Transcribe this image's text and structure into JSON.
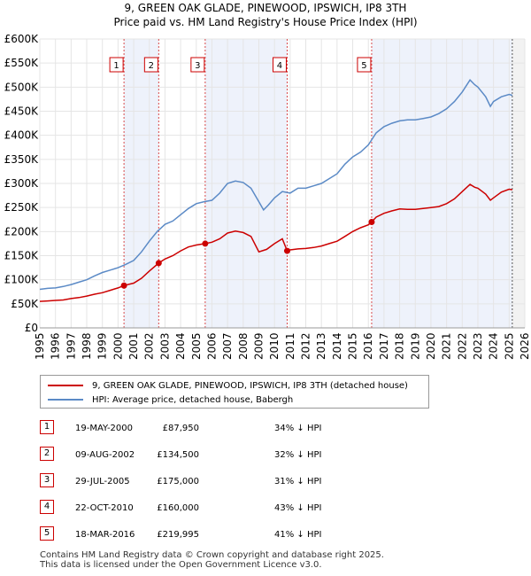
{
  "title": {
    "line1": "9, GREEN OAK GLADE, PINEWOOD, IPSWICH, IP8 3TH",
    "line2": "Price paid vs. HM Land Registry's House Price Index (HPI)"
  },
  "colors": {
    "property": "#cc0000",
    "hpi": "#5b8ac6",
    "shade": "#eef2fb",
    "grid": "#e5e5e5"
  },
  "chart_data": {
    "type": "line",
    "title": "Price paid vs. HM Land Registry's House Price Index (HPI)",
    "xlabel": "",
    "ylabel": "",
    "xlim": [
      1995,
      2026
    ],
    "ylim": [
      0,
      600000
    ],
    "y_ticks": [
      {
        "value": 0,
        "label": "£0"
      },
      {
        "value": 50000,
        "label": "£50K"
      },
      {
        "value": 100000,
        "label": "£100K"
      },
      {
        "value": 150000,
        "label": "£150K"
      },
      {
        "value": 200000,
        "label": "£200K"
      },
      {
        "value": 250000,
        "label": "£250K"
      },
      {
        "value": 300000,
        "label": "£300K"
      },
      {
        "value": 350000,
        "label": "£350K"
      },
      {
        "value": 400000,
        "label": "£400K"
      },
      {
        "value": 450000,
        "label": "£450K"
      },
      {
        "value": 500000,
        "label": "£500K"
      },
      {
        "value": 550000,
        "label": "£550K"
      },
      {
        "value": 600000,
        "label": "£600K"
      }
    ],
    "x_ticks": [
      "1995",
      "1996",
      "1997",
      "1998",
      "1999",
      "2000",
      "2001",
      "2002",
      "2003",
      "2004",
      "2005",
      "2006",
      "2007",
      "2008",
      "2009",
      "2010",
      "2011",
      "2012",
      "2013",
      "2014",
      "2015",
      "2016",
      "2017",
      "2018",
      "2019",
      "2020",
      "2021",
      "2022",
      "2023",
      "2024",
      "2025",
      "2026"
    ],
    "shaded_periods": [
      [
        2000.38,
        2002.6
      ],
      [
        2005.57,
        2010.81
      ],
      [
        2016.21,
        2025.2
      ]
    ],
    "series": [
      {
        "name": "HPI: Average price, detached house, Babergh",
        "color": "#5b8ac6",
        "x": [
          1995.0,
          1995.5,
          1996.0,
          1996.5,
          1997.0,
          1997.5,
          1998.0,
          1998.5,
          1999.0,
          1999.5,
          2000.0,
          2000.5,
          2001.0,
          2001.5,
          2002.0,
          2002.5,
          2003.0,
          2003.5,
          2004.0,
          2004.5,
          2005.0,
          2005.5,
          2006.0,
          2006.5,
          2007.0,
          2007.5,
          2008.0,
          2008.5,
          2009.0,
          2009.3,
          2009.6,
          2010.0,
          2010.5,
          2011.0,
          2011.5,
          2012.0,
          2012.5,
          2013.0,
          2013.5,
          2014.0,
          2014.5,
          2015.0,
          2015.5,
          2016.0,
          2016.5,
          2017.0,
          2017.5,
          2018.0,
          2018.5,
          2019.0,
          2019.5,
          2020.0,
          2020.5,
          2021.0,
          2021.5,
          2022.0,
          2022.5,
          2022.8,
          2023.0,
          2023.5,
          2023.8,
          2024.0,
          2024.5,
          2025.0,
          2025.2
        ],
        "values": [
          80000,
          82000,
          83000,
          86000,
          90000,
          95000,
          100000,
          108000,
          115000,
          120000,
          125000,
          132000,
          140000,
          158000,
          180000,
          200000,
          215000,
          222000,
          235000,
          248000,
          258000,
          262000,
          265000,
          280000,
          300000,
          305000,
          302000,
          290000,
          262000,
          245000,
          255000,
          270000,
          283000,
          280000,
          290000,
          290000,
          295000,
          300000,
          310000,
          320000,
          340000,
          355000,
          365000,
          380000,
          405000,
          418000,
          425000,
          430000,
          432000,
          432000,
          435000,
          438000,
          445000,
          455000,
          470000,
          490000,
          515000,
          505000,
          500000,
          480000,
          460000,
          470000,
          480000,
          485000,
          483000
        ]
      },
      {
        "name": "9, GREEN OAK GLADE, PINEWOOD, IPSWICH, IP8 3TH (detached house)",
        "color": "#cc0000",
        "x": [
          1995.0,
          1995.5,
          1996.0,
          1996.5,
          1997.0,
          1997.5,
          1998.0,
          1998.5,
          1999.0,
          1999.5,
          2000.0,
          2000.38,
          2001.0,
          2001.5,
          2002.0,
          2002.6,
          2003.0,
          2003.5,
          2004.0,
          2004.5,
          2005.0,
          2005.57,
          2006.0,
          2006.5,
          2007.0,
          2007.5,
          2008.0,
          2008.5,
          2009.0,
          2009.5,
          2010.0,
          2010.5,
          2010.81,
          2011.0,
          2011.5,
          2012.0,
          2012.5,
          2013.0,
          2013.5,
          2014.0,
          2014.5,
          2015.0,
          2015.5,
          2016.0,
          2016.21,
          2016.5,
          2017.0,
          2017.5,
          2018.0,
          2018.5,
          2019.0,
          2019.5,
          2020.0,
          2020.5,
          2021.0,
          2021.5,
          2022.0,
          2022.5,
          2022.8,
          2023.0,
          2023.5,
          2023.8,
          2024.0,
          2024.5,
          2025.0,
          2025.2
        ],
        "values": [
          55000,
          56000,
          57000,
          58000,
          61000,
          63000,
          66000,
          70000,
          73000,
          78000,
          83000,
          87950,
          93000,
          103000,
          118000,
          134500,
          143000,
          150000,
          160000,
          168000,
          172000,
          175000,
          178000,
          185000,
          197000,
          201000,
          198000,
          190000,
          158000,
          163000,
          175000,
          185000,
          160000,
          162000,
          164000,
          165000,
          167000,
          170000,
          175000,
          180000,
          190000,
          200000,
          208000,
          214000,
          219995,
          230000,
          238000,
          243000,
          247000,
          246000,
          246000,
          248000,
          250000,
          252000,
          258000,
          268000,
          283000,
          298000,
          292000,
          290000,
          278000,
          265000,
          270000,
          282000,
          288000,
          287000
        ]
      }
    ],
    "sales": [
      {
        "label": "1",
        "x": 2000.38,
        "value": 87950
      },
      {
        "label": "2",
        "x": 2002.6,
        "value": 134500
      },
      {
        "label": "3",
        "x": 2005.57,
        "value": 175000
      },
      {
        "label": "4",
        "x": 2010.81,
        "value": 160000
      },
      {
        "label": "5",
        "x": 2016.21,
        "value": 219995
      }
    ]
  },
  "legend": {
    "property": "9, GREEN OAK GLADE, PINEWOOD, IPSWICH, IP8 3TH (detached house)",
    "hpi": "HPI: Average price, detached house, Babergh"
  },
  "sales_table": [
    {
      "num": "1",
      "date": "19-MAY-2000",
      "price": "£87,950",
      "hpi": "34% ↓ HPI"
    },
    {
      "num": "2",
      "date": "09-AUG-2002",
      "price": "£134,500",
      "hpi": "32% ↓ HPI"
    },
    {
      "num": "3",
      "date": "29-JUL-2005",
      "price": "£175,000",
      "hpi": "31% ↓ HPI"
    },
    {
      "num": "4",
      "date": "22-OCT-2010",
      "price": "£160,000",
      "hpi": "43% ↓ HPI"
    },
    {
      "num": "5",
      "date": "18-MAR-2016",
      "price": "£219,995",
      "hpi": "41% ↓ HPI"
    }
  ],
  "footer": {
    "line1": "Contains HM Land Registry data © Crown copyright and database right 2025.",
    "line2": "This data is licensed under the Open Government Licence v3.0."
  }
}
